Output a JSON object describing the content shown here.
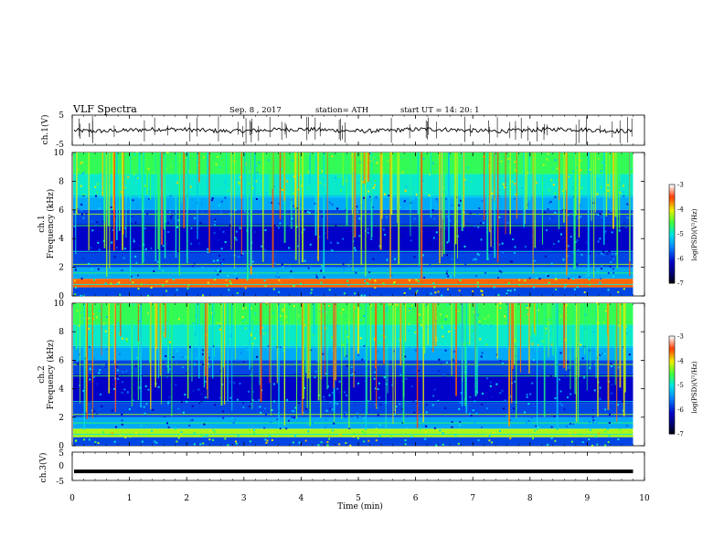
{
  "header": {
    "title": "VLF  Spectra",
    "date": "Sep. 8  , 2017",
    "station": "station= ATH",
    "start_ut": "start  UT  =    14: 20: 1"
  },
  "colors": {
    "trace": "#000000",
    "background": "#ffffff"
  },
  "chart_data": [
    {
      "type": "line",
      "panel": "ch1-waveform",
      "ylabel": "ch.1(V)",
      "ylim": [
        -5,
        5
      ],
      "y_ticks": [
        "5",
        "-5"
      ],
      "xlim": [
        0,
        10
      ],
      "approx_level_V": 0,
      "description_of_values": "noisy trace around 0 V with spikes spanning roughly -5 to 5 V over 0 to 9.8 min"
    },
    {
      "type": "heatmap",
      "panel": "ch1-spectrogram",
      "title": "ch.1",
      "ylabel": "Frequency  (kHz)",
      "ylim": [
        0,
        10
      ],
      "y_ticks": [
        "0",
        "2",
        "4",
        "6",
        "8",
        "10"
      ],
      "xlim": [
        0,
        10
      ],
      "data_end_min": 9.8,
      "colorbar": {
        "label": "log(PSD)(V²/Hz)",
        "range": [
          -7,
          -3
        ],
        "ticks": [
          "-3",
          "-4",
          "-5",
          "-6",
          "-7"
        ]
      }
    },
    {
      "type": "heatmap",
      "panel": "ch2-spectrogram",
      "title": "ch.2",
      "ylabel": "Frequency  (kHz)",
      "ylim": [
        0,
        10
      ],
      "y_ticks": [
        "0",
        "2",
        "4",
        "6",
        "8",
        "10"
      ],
      "xlim": [
        0,
        10
      ],
      "data_end_min": 9.8,
      "colorbar": {
        "label": "log(PSD)(V²/Hz)",
        "range": [
          -7,
          -3
        ],
        "ticks": [
          "-3",
          "-4",
          "-5",
          "-6",
          "-7"
        ]
      }
    },
    {
      "type": "line",
      "panel": "ch3-waveform",
      "ylabel": "ch.3(V)",
      "ylim": [
        -5,
        5
      ],
      "y_ticks": [
        "5",
        "0",
        "-5"
      ],
      "xlim": [
        0,
        10
      ],
      "approx_level_V": -1.8
    }
  ],
  "x_axis": {
    "label": "Time  (min)",
    "ticks": [
      "0",
      "1",
      "2",
      "3",
      "4",
      "5",
      "6",
      "7",
      "8",
      "9",
      "10"
    ]
  }
}
